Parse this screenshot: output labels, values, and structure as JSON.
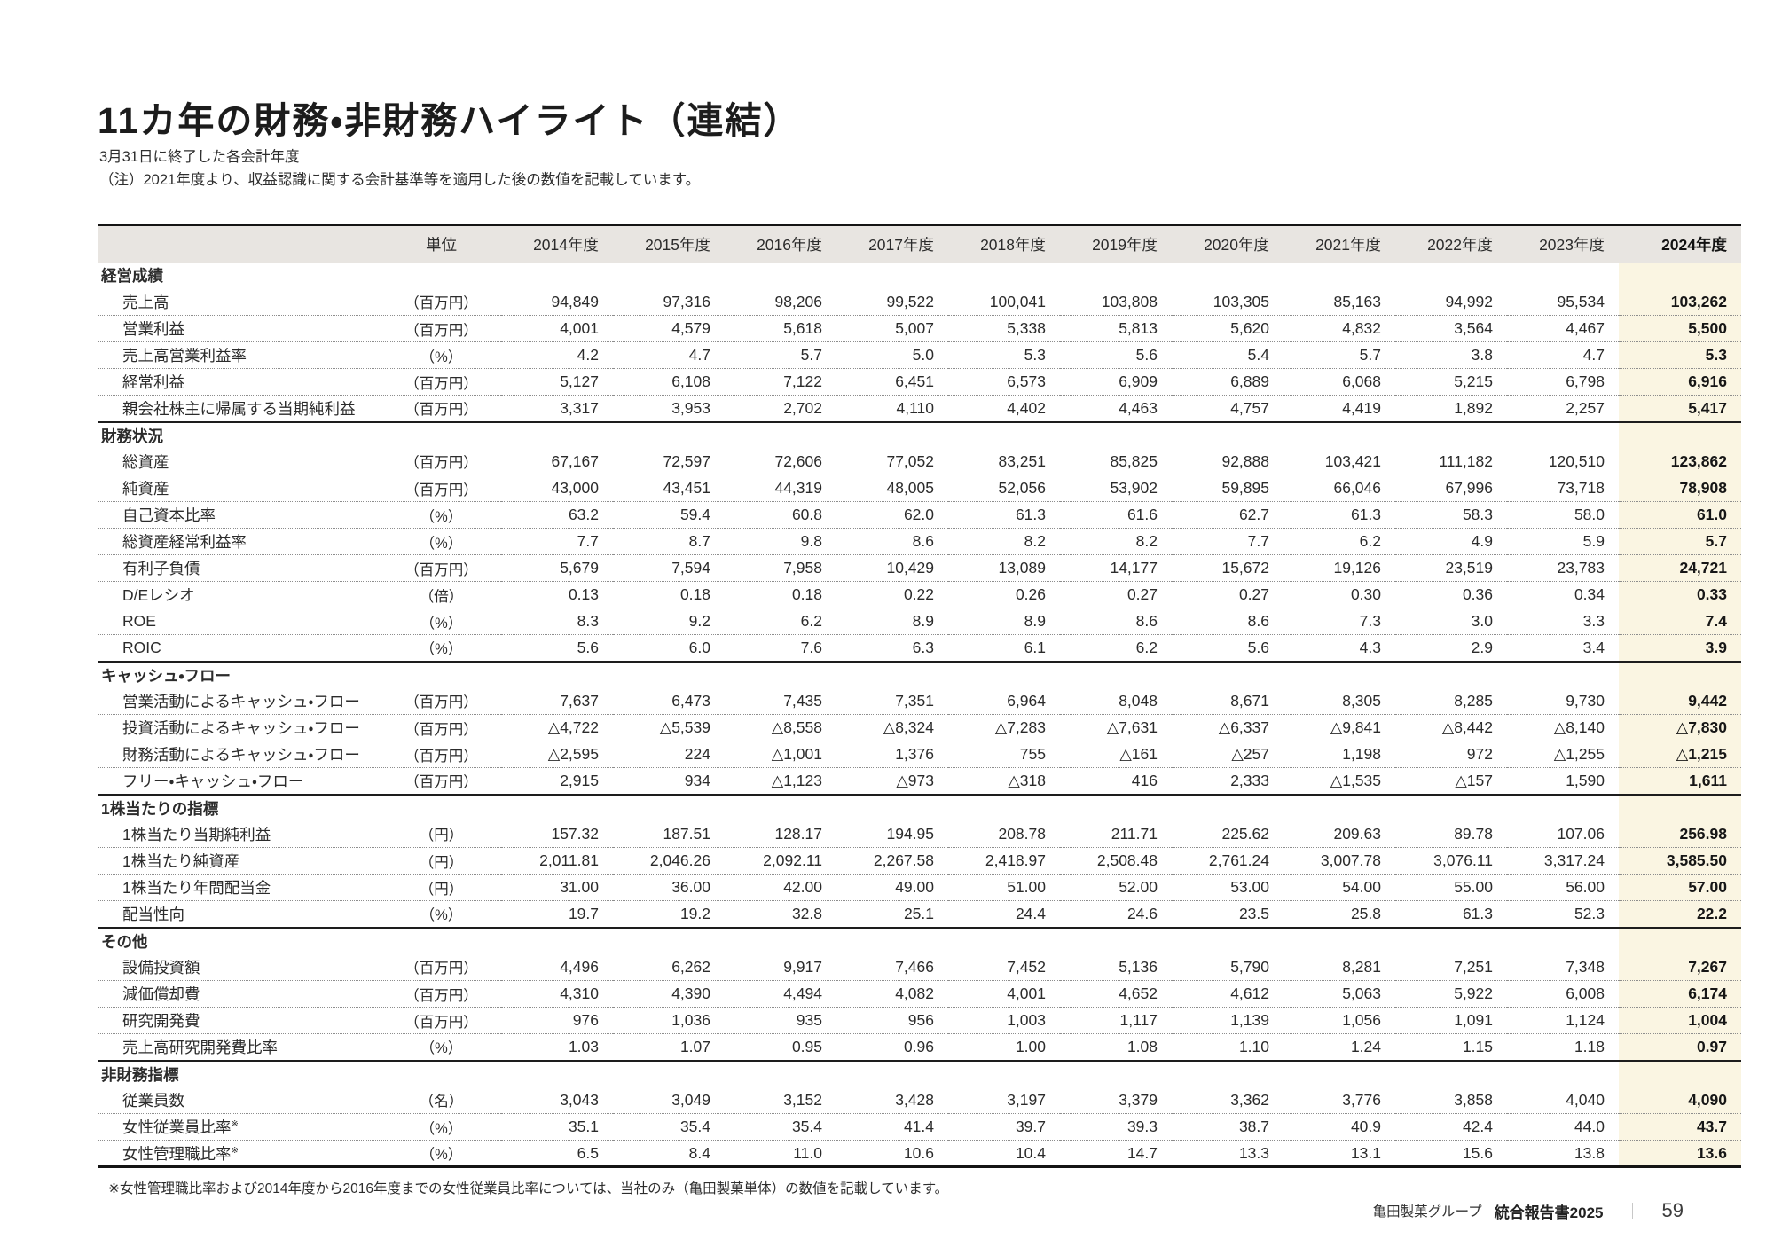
{
  "page": {
    "title": "11カ年の財務・非財務ハイライト（連結）",
    "subtitle_line1": "3月31日に終了した各会計年度",
    "subtitle_line2": "（注）2021年度より、収益認識に関する会計基準等を適用した後の数値を記載しています。",
    "footnote": "※女性管理職比率および2014年度から2016年度までの女性従業員比率については、当社のみ（亀田製菓単体）の数値を記載しています。",
    "footer": {
      "company": "亀田製菓グループ",
      "report": "統合報告書2025",
      "separator": "｜",
      "page_number": "59"
    }
  },
  "colors": {
    "header_bg": "#e8e5e1",
    "highlight_bg": "#faf5e2",
    "rule_dark": "#141414",
    "text": "#2b2b2b"
  },
  "table": {
    "unit_header": "単位",
    "year_headers": [
      "2014年度",
      "2015年度",
      "2016年度",
      "2017年度",
      "2018年度",
      "2019年度",
      "2020年度",
      "2021年度",
      "2022年度",
      "2023年度",
      "2024年度"
    ],
    "highlight_year": "2024年度",
    "sections": [
      {
        "name": "経営成績",
        "rows": [
          {
            "label": "売上高",
            "unit": "（百万円）",
            "values": [
              "94,849",
              "97,316",
              "98,206",
              "99,522",
              "100,041",
              "103,808",
              "103,305",
              "85,163",
              "94,992",
              "95,534",
              "103,262"
            ]
          },
          {
            "label": "営業利益",
            "unit": "（百万円）",
            "values": [
              "4,001",
              "4,579",
              "5,618",
              "5,007",
              "5,338",
              "5,813",
              "5,620",
              "4,832",
              "3,564",
              "4,467",
              "5,500"
            ]
          },
          {
            "label": "売上高営業利益率",
            "unit": "（%）",
            "values": [
              "4.2",
              "4.7",
              "5.7",
              "5.0",
              "5.3",
              "5.6",
              "5.4",
              "5.7",
              "3.8",
              "4.7",
              "5.3"
            ]
          },
          {
            "label": "経常利益",
            "unit": "（百万円）",
            "values": [
              "5,127",
              "6,108",
              "7,122",
              "6,451",
              "6,573",
              "6,909",
              "6,889",
              "6,068",
              "5,215",
              "6,798",
              "6,916"
            ]
          },
          {
            "label": "親会社株主に帰属する当期純利益",
            "unit": "（百万円）",
            "values": [
              "3,317",
              "3,953",
              "2,702",
              "4,110",
              "4,402",
              "4,463",
              "4,757",
              "4,419",
              "1,892",
              "2,257",
              "5,417"
            ]
          }
        ]
      },
      {
        "name": "財務状況",
        "rows": [
          {
            "label": "総資産",
            "unit": "（百万円）",
            "values": [
              "67,167",
              "72,597",
              "72,606",
              "77,052",
              "83,251",
              "85,825",
              "92,888",
              "103,421",
              "111,182",
              "120,510",
              "123,862"
            ]
          },
          {
            "label": "純資産",
            "unit": "（百万円）",
            "values": [
              "43,000",
              "43,451",
              "44,319",
              "48,005",
              "52,056",
              "53,902",
              "59,895",
              "66,046",
              "67,996",
              "73,718",
              "78,908"
            ]
          },
          {
            "label": "自己資本比率",
            "unit": "（%）",
            "values": [
              "63.2",
              "59.4",
              "60.8",
              "62.0",
              "61.3",
              "61.6",
              "62.7",
              "61.3",
              "58.3",
              "58.0",
              "61.0"
            ]
          },
          {
            "label": "総資産経常利益率",
            "unit": "（%）",
            "values": [
              "7.7",
              "8.7",
              "9.8",
              "8.6",
              "8.2",
              "8.2",
              "7.7",
              "6.2",
              "4.9",
              "5.9",
              "5.7"
            ]
          },
          {
            "label": "有利子負債",
            "unit": "（百万円）",
            "values": [
              "5,679",
              "7,594",
              "7,958",
              "10,429",
              "13,089",
              "14,177",
              "15,672",
              "19,126",
              "23,519",
              "23,783",
              "24,721"
            ]
          },
          {
            "label": "D/Eレシオ",
            "unit": "（倍）",
            "values": [
              "0.13",
              "0.18",
              "0.18",
              "0.22",
              "0.26",
              "0.27",
              "0.27",
              "0.30",
              "0.36",
              "0.34",
              "0.33"
            ]
          },
          {
            "label": "ROE",
            "unit": "（%）",
            "values": [
              "8.3",
              "9.2",
              "6.2",
              "8.9",
              "8.9",
              "8.6",
              "8.6",
              "7.3",
              "3.0",
              "3.3",
              "7.4"
            ]
          },
          {
            "label": "ROIC",
            "unit": "（%）",
            "values": [
              "5.6",
              "6.0",
              "7.6",
              "6.3",
              "6.1",
              "6.2",
              "5.6",
              "4.3",
              "2.9",
              "3.4",
              "3.9"
            ]
          }
        ]
      },
      {
        "name": "キャッシュ・フロー",
        "rows": [
          {
            "label": "営業活動によるキャッシュ・フロー",
            "unit": "（百万円）",
            "values": [
              "7,637",
              "6,473",
              "7,435",
              "7,351",
              "6,964",
              "8,048",
              "8,671",
              "8,305",
              "8,285",
              "9,730",
              "9,442"
            ]
          },
          {
            "label": "投資活動によるキャッシュ・フロー",
            "unit": "（百万円）",
            "values": [
              "△4,722",
              "△5,539",
              "△8,558",
              "△8,324",
              "△7,283",
              "△7,631",
              "△6,337",
              "△9,841",
              "△8,442",
              "△8,140",
              "△7,830"
            ]
          },
          {
            "label": "財務活動によるキャッシュ・フロー",
            "unit": "（百万円）",
            "values": [
              "△2,595",
              "224",
              "△1,001",
              "1,376",
              "755",
              "△161",
              "△257",
              "1,198",
              "972",
              "△1,255",
              "△1,215"
            ]
          },
          {
            "label": "フリー・キャッシュ・フロー",
            "unit": "（百万円）",
            "values": [
              "2,915",
              "934",
              "△1,123",
              "△973",
              "△318",
              "416",
              "2,333",
              "△1,535",
              "△157",
              "1,590",
              "1,611"
            ]
          }
        ]
      },
      {
        "name": "1株当たりの指標",
        "rows": [
          {
            "label": "1株当たり当期純利益",
            "unit": "（円）",
            "values": [
              "157.32",
              "187.51",
              "128.17",
              "194.95",
              "208.78",
              "211.71",
              "225.62",
              "209.63",
              "89.78",
              "107.06",
              "256.98"
            ]
          },
          {
            "label": "1株当たり純資産",
            "unit": "（円）",
            "values": [
              "2,011.81",
              "2,046.26",
              "2,092.11",
              "2,267.58",
              "2,418.97",
              "2,508.48",
              "2,761.24",
              "3,007.78",
              "3,076.11",
              "3,317.24",
              "3,585.50"
            ]
          },
          {
            "label": "1株当たり年間配当金",
            "unit": "（円）",
            "values": [
              "31.00",
              "36.00",
              "42.00",
              "49.00",
              "51.00",
              "52.00",
              "53.00",
              "54.00",
              "55.00",
              "56.00",
              "57.00"
            ]
          },
          {
            "label": "配当性向",
            "unit": "（%）",
            "values": [
              "19.7",
              "19.2",
              "32.8",
              "25.1",
              "24.4",
              "24.6",
              "23.5",
              "25.8",
              "61.3",
              "52.3",
              "22.2"
            ]
          }
        ]
      },
      {
        "name": "その他",
        "rows": [
          {
            "label": "設備投資額",
            "unit": "（百万円）",
            "values": [
              "4,496",
              "6,262",
              "9,917",
              "7,466",
              "7,452",
              "5,136",
              "5,790",
              "8,281",
              "7,251",
              "7,348",
              "7,267"
            ]
          },
          {
            "label": "減価償却費",
            "unit": "（百万円）",
            "values": [
              "4,310",
              "4,390",
              "4,494",
              "4,082",
              "4,001",
              "4,652",
              "4,612",
              "5,063",
              "5,922",
              "6,008",
              "6,174"
            ]
          },
          {
            "label": "研究開発費",
            "unit": "（百万円）",
            "values": [
              "976",
              "1,036",
              "935",
              "956",
              "1,003",
              "1,117",
              "1,139",
              "1,056",
              "1,091",
              "1,124",
              "1,004"
            ]
          },
          {
            "label": "売上高研究開発費比率",
            "unit": "（%）",
            "values": [
              "1.03",
              "1.07",
              "0.95",
              "0.96",
              "1.00",
              "1.08",
              "1.10",
              "1.24",
              "1.15",
              "1.18",
              "0.97"
            ]
          }
        ]
      },
      {
        "name": "非財務指標",
        "rows": [
          {
            "label": "従業員数",
            "unit": "（名）",
            "values": [
              "3,043",
              "3,049",
              "3,152",
              "3,428",
              "3,197",
              "3,379",
              "3,362",
              "3,776",
              "3,858",
              "4,040",
              "4,090"
            ]
          },
          {
            "label": "女性従業員比率",
            "note_mark": "※",
            "unit": "（%）",
            "values": [
              "35.1",
              "35.4",
              "35.4",
              "41.4",
              "39.7",
              "39.3",
              "38.7",
              "40.9",
              "42.4",
              "44.0",
              "43.7"
            ]
          },
          {
            "label": "女性管理職比率",
            "note_mark": "※",
            "unit": "（%）",
            "values": [
              "6.5",
              "8.4",
              "11.0",
              "10.6",
              "10.4",
              "14.7",
              "13.3",
              "13.1",
              "15.6",
              "13.8",
              "13.6"
            ]
          }
        ]
      }
    ]
  }
}
